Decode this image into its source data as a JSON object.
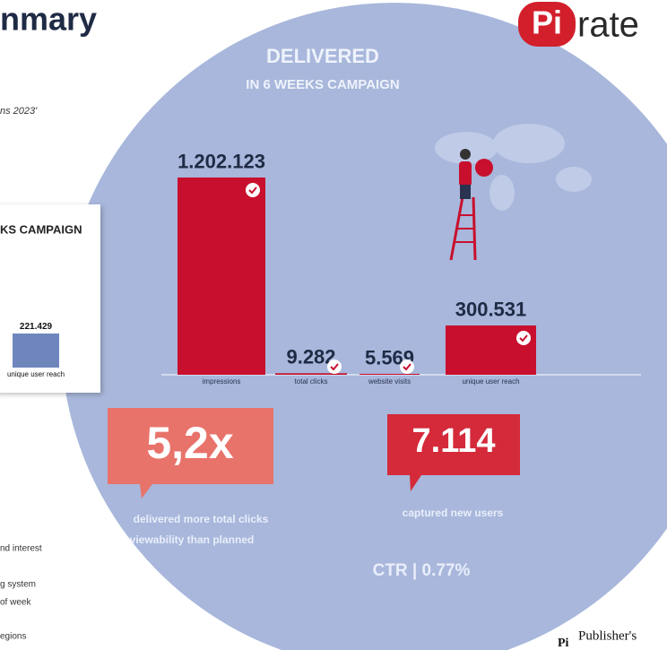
{
  "header": {
    "title": "nmary",
    "subtitle": "ns 2023'",
    "logo_mark": "Pi",
    "logo_text": "rate"
  },
  "chart_data": [
    {
      "type": "bar",
      "title": "DELIVERED",
      "subtitle": "IN 6 WEEKS CAMPAIGN",
      "categories": [
        "impressions",
        "total clicks",
        "website visits",
        "unique user reach"
      ],
      "values": [
        1202123,
        9282,
        5569,
        300531
      ],
      "value_labels": [
        "1.202.123",
        "9.282",
        "5.569",
        "300.531"
      ],
      "color": "#c8102e"
    },
    {
      "type": "bar",
      "title": "KS CAMPAIGN",
      "categories": [
        "unique user reach"
      ],
      "values": [
        221429
      ],
      "value_labels": [
        "221.429"
      ],
      "color": "#6f86bd"
    }
  ],
  "callouts": [
    {
      "value": "5,2x",
      "lines": [
        "delivered more total clicks",
        "viewability than planned"
      ]
    },
    {
      "value": "7.114",
      "lines": [
        "captured new users"
      ]
    }
  ],
  "ctr": "CTR | 0.77%",
  "side_notes": [
    "nd interest",
    "g system",
    "of week",
    "egions"
  ],
  "footer": {
    "mark": "Pi",
    "text": "Publisher's"
  }
}
